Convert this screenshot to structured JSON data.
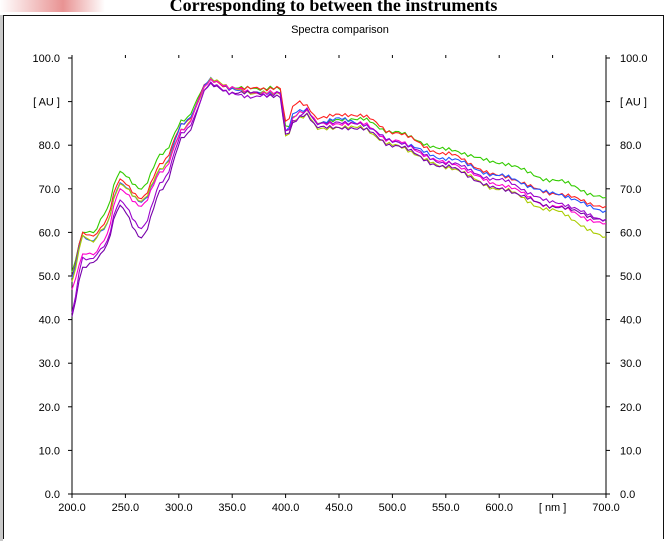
{
  "page": {
    "heading": "Corresponding to between the instruments",
    "accent_color": "#d63a3a"
  },
  "chart_data": {
    "type": "line",
    "title": "Spectra comparison",
    "xlabel": "[ nm ]",
    "ylabel": "[ AU ]",
    "xlim": [
      200,
      700
    ],
    "ylim": [
      0,
      100
    ],
    "x_ticks": [
      "200.0",
      "250.0",
      "300.0",
      "350.0",
      "400.0",
      "450.0",
      "500.0",
      "550.0",
      "600.0",
      "[ nm ]",
      "700.0"
    ],
    "y_ticks": [
      "0.0",
      "10.0",
      "20.0",
      "30.0",
      "40.0",
      "50.0",
      "60.0",
      "70.0",
      "80.0",
      "[ AU ]",
      "100.0"
    ],
    "grid": false,
    "series": [
      {
        "color": "#33cc00",
        "x": [
          200,
          210,
          220,
          230,
          245,
          265,
          285,
          305,
          330,
          350,
          370,
          395,
          400,
          410,
          420,
          430,
          450,
          470,
          500,
          550,
          600,
          650,
          700
        ],
        "y": [
          51,
          60,
          60,
          64,
          74,
          70,
          78,
          86,
          95,
          93,
          93,
          93,
          84,
          87,
          88,
          85,
          86,
          86,
          83,
          79,
          76,
          72,
          68
        ]
      },
      {
        "color": "#ff2020",
        "x": [
          200,
          210,
          220,
          230,
          245,
          265,
          285,
          305,
          330,
          350,
          370,
          395,
          400,
          410,
          420,
          430,
          450,
          470,
          500,
          550,
          600,
          650,
          700
        ],
        "y": [
          50,
          60,
          59,
          62,
          72,
          68,
          76,
          85,
          95,
          93,
          93,
          93,
          85,
          90,
          89,
          86,
          87,
          87,
          83,
          78,
          73,
          69,
          66
        ]
      },
      {
        "color": "#2255ff",
        "x": [
          200,
          210,
          220,
          230,
          245,
          265,
          285,
          305,
          330,
          350,
          370,
          395,
          400,
          410,
          420,
          430,
          450,
          470,
          500,
          550,
          600,
          650,
          700
        ],
        "y": [
          50,
          59,
          58,
          61,
          71,
          67,
          75,
          85,
          95,
          93,
          92,
          92,
          83,
          88,
          88,
          85,
          86,
          85,
          81,
          77,
          73,
          69,
          65
        ]
      },
      {
        "color": "#aacc00",
        "x": [
          200,
          210,
          220,
          230,
          245,
          265,
          285,
          305,
          330,
          350,
          370,
          395,
          400,
          410,
          420,
          430,
          450,
          470,
          500,
          550,
          600,
          650,
          700
        ],
        "y": [
          49,
          59,
          58,
          61,
          71,
          67,
          75,
          84,
          95,
          93,
          92,
          92,
          82,
          86,
          87,
          84,
          84,
          84,
          80,
          75,
          70,
          65,
          59
        ]
      },
      {
        "color": "#ff00cc",
        "x": [
          200,
          210,
          220,
          230,
          245,
          265,
          285,
          305,
          330,
          350,
          370,
          395,
          400,
          410,
          420,
          430,
          450,
          470,
          500,
          550,
          600,
          650,
          700
        ],
        "y": [
          47,
          55,
          55,
          58,
          70,
          66,
          74,
          84,
          95,
          93,
          92,
          92,
          83,
          87,
          88,
          85,
          85,
          85,
          81,
          76,
          71,
          66,
          62
        ]
      },
      {
        "color": "#7700aa",
        "x": [
          200,
          210,
          220,
          230,
          245,
          265,
          285,
          305,
          330,
          350,
          370,
          395,
          400,
          410,
          420,
          430,
          450,
          470,
          500,
          550,
          600,
          650,
          700
        ],
        "y": [
          41,
          52,
          53,
          56,
          66,
          59,
          70,
          82,
          94,
          92,
          92,
          91,
          82,
          86,
          87,
          84,
          84,
          84,
          80,
          75,
          70,
          66,
          63
        ]
      },
      {
        "color": "#9900cc",
        "x": [
          200,
          210,
          220,
          230,
          245,
          265,
          285,
          305,
          330,
          350,
          370,
          395,
          400,
          410,
          420,
          430,
          450,
          470,
          500,
          550,
          600,
          650,
          700
        ],
        "y": [
          42,
          54,
          54,
          57,
          67,
          61,
          72,
          83,
          94,
          92,
          91,
          92,
          83,
          86,
          88,
          85,
          85,
          85,
          81,
          76,
          72,
          67,
          63
        ]
      }
    ]
  }
}
